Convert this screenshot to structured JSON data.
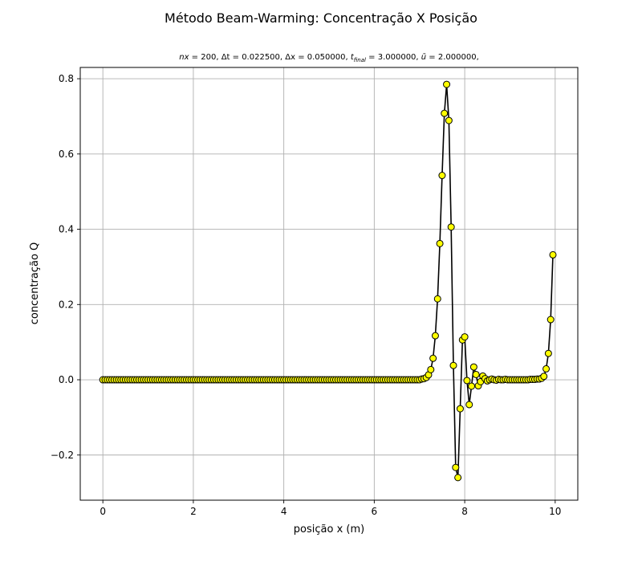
{
  "chart_data": {
    "type": "line",
    "title": "Método Beam-Warming: Concentração X Posição",
    "subtitle": "nx = 200, Δt = 0.022500, Δx = 0.050000, t_final = 3.000000, ū = 2.000000,",
    "subtitle_parts": {
      "nx": "nx",
      "nx_val": " = 200, ",
      "dt": "Δt",
      "dt_val": " = 0.022500, ",
      "dx": "Δx",
      "dx_val": " = 0.050000, ",
      "t": "t",
      "t_sub": "final",
      "t_val": " = 3.000000, ",
      "u": "ū",
      "u_val": " = 2.000000,"
    },
    "xlabel": "posição x (m)",
    "ylabel": "concentração Q",
    "xlim": [
      -0.5,
      10.5
    ],
    "ylim": [
      -0.32,
      0.83
    ],
    "xticks": [
      0,
      2,
      4,
      6,
      8,
      10
    ],
    "yticks": [
      -0.2,
      0.0,
      0.2,
      0.4,
      0.6,
      0.8
    ],
    "xtick_labels": [
      "0",
      "2",
      "4",
      "6",
      "8",
      "10"
    ],
    "ytick_labels": [
      "−0.2",
      "0.0",
      "0.2",
      "0.4",
      "0.6",
      "0.8"
    ],
    "grid": true,
    "colors": {
      "line": "#000000",
      "marker_fill": "#ffff00",
      "marker_edge": "#000000",
      "grid": "#b0b0b0"
    },
    "dx": 0.05,
    "nx": 200,
    "baseline_until": 7.0,
    "series": [
      {
        "points": [
          [
            7.05,
            0.002
          ],
          [
            7.1,
            0.003
          ],
          [
            7.15,
            0.006
          ],
          [
            7.2,
            0.013
          ],
          [
            7.25,
            0.027
          ],
          [
            7.3,
            0.057
          ],
          [
            7.35,
            0.117
          ],
          [
            7.4,
            0.215
          ],
          [
            7.45,
            0.362
          ],
          [
            7.5,
            0.543
          ],
          [
            7.55,
            0.708
          ],
          [
            7.6,
            0.785
          ],
          [
            7.65,
            0.689
          ],
          [
            7.7,
            0.406
          ],
          [
            7.75,
            0.038
          ],
          [
            7.8,
            -0.233
          ],
          [
            7.85,
            -0.26
          ],
          [
            7.9,
            -0.077
          ],
          [
            7.95,
            0.106
          ],
          [
            8.0,
            0.114
          ],
          [
            8.05,
            -0.002
          ],
          [
            8.1,
            -0.066
          ],
          [
            8.15,
            -0.017
          ],
          [
            8.2,
            0.034
          ],
          [
            8.25,
            0.014
          ],
          [
            8.3,
            -0.016
          ],
          [
            8.35,
            -0.005
          ],
          [
            8.4,
            0.01
          ],
          [
            8.45,
            0.003
          ],
          [
            8.5,
            -0.003
          ],
          [
            8.55,
            0.0
          ],
          [
            8.6,
            0.002
          ],
          [
            8.65,
            0.0
          ],
          [
            8.7,
            -0.001
          ],
          [
            8.75,
            0.001
          ],
          [
            8.8,
            0.0
          ],
          [
            8.85,
            0.0
          ],
          [
            8.9,
            0.001
          ],
          [
            8.95,
            0.0
          ],
          [
            9.0,
            0.0
          ],
          [
            9.05,
            0.0
          ],
          [
            9.1,
            0.0
          ],
          [
            9.15,
            0.0
          ],
          [
            9.2,
            0.0
          ],
          [
            9.25,
            0.0
          ],
          [
            9.3,
            0.0
          ],
          [
            9.35,
            0.0
          ],
          [
            9.4,
            0.0
          ],
          [
            9.45,
            0.001
          ],
          [
            9.5,
            0.001
          ],
          [
            9.55,
            0.001
          ],
          [
            9.6,
            0.002
          ],
          [
            9.65,
            0.002
          ],
          [
            9.7,
            0.004
          ],
          [
            9.75,
            0.009
          ],
          [
            9.8,
            0.029
          ],
          [
            9.85,
            0.07
          ],
          [
            9.9,
            0.16
          ],
          [
            9.95,
            0.332
          ]
        ]
      }
    ]
  }
}
